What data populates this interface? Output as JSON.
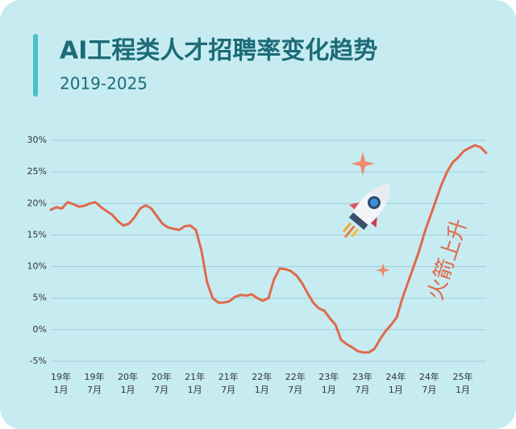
{
  "chart_data": {
    "type": "line",
    "title": "AI工程类人才招聘率变化趋势",
    "subtitle": "2019-2025",
    "annotation": "火箭上升",
    "x": [
      "19年\n1月",
      null,
      null,
      null,
      null,
      null,
      "19年\n7月",
      null,
      null,
      null,
      null,
      null,
      "20年\n1月",
      null,
      null,
      null,
      null,
      null,
      "20年\n7月",
      null,
      null,
      null,
      null,
      null,
      "21年\n1月",
      null,
      null,
      null,
      null,
      null,
      "21年\n7月",
      null,
      null,
      null,
      null,
      null,
      "22年\n1月",
      null,
      null,
      null,
      null,
      null,
      "22年\n7月",
      null,
      null,
      null,
      null,
      null,
      "23年\n1月",
      null,
      null,
      null,
      null,
      null,
      "23年\n7月",
      null,
      null,
      null,
      null,
      null,
      "24年\n1月",
      null,
      null,
      null,
      null,
      null,
      "24年\n7月",
      null,
      null,
      null,
      null,
      null,
      "25年\n1月",
      null,
      null,
      null,
      null,
      null,
      null
    ],
    "values": [
      19.0,
      19.4,
      19.2,
      20.2,
      19.9,
      19.5,
      19.6,
      20.0,
      20.2,
      19.4,
      18.8,
      18.2,
      17.2,
      16.5,
      16.8,
      17.8,
      19.2,
      19.7,
      19.2,
      18.0,
      16.8,
      16.2,
      16.0,
      15.8,
      16.4,
      16.5,
      15.8,
      12.5,
      7.5,
      5.0,
      4.3,
      4.3,
      4.5,
      5.2,
      5.5,
      5.4,
      5.6,
      5.0,
      4.6,
      5.0,
      8.0,
      9.7,
      9.6,
      9.3,
      8.6,
      7.4,
      5.8,
      4.3,
      3.4,
      3.0,
      1.8,
      0.8,
      -1.6,
      -2.3,
      -2.8,
      -3.4,
      -3.6,
      -3.6,
      -3.0,
      -1.5,
      -0.2,
      0.8,
      2.0,
      5.0,
      7.5,
      10.0,
      12.5,
      15.5,
      18.0,
      20.5,
      23.0,
      25.0,
      26.5,
      27.3,
      28.3,
      28.8,
      29.2,
      28.9,
      28.0
    ],
    "color": "#e0694a",
    "ylim": [
      -5,
      30
    ],
    "yticks": [
      {
        "value": -5,
        "label": "-5%"
      },
      {
        "value": 0,
        "label": "0%"
      },
      {
        "value": 5,
        "label": "5%"
      },
      {
        "value": 10,
        "label": "10%"
      },
      {
        "value": 15,
        "label": "15%"
      },
      {
        "value": 20,
        "label": "20%"
      },
      {
        "value": 25,
        "label": "25%"
      },
      {
        "value": 30,
        "label": "30%"
      }
    ],
    "grid": true
  }
}
